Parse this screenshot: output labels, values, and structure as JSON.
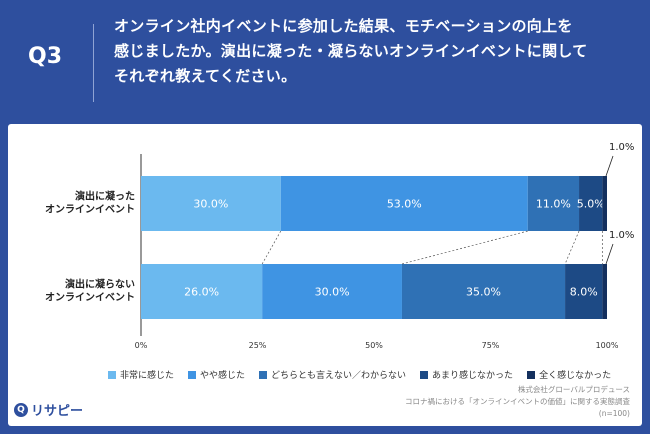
{
  "header": {
    "q_label": "Q3",
    "question_lines": [
      "オンライン社内イベントに参加した結果、モチベーションの向上を",
      "感じましたか。演出に凝った・凝らないオンラインイベントに関して",
      "それぞれ教えてください。"
    ]
  },
  "chart_data": {
    "type": "bar",
    "orientation": "horizontal",
    "stacked": true,
    "categories": [
      "演出に凝った\nオンラインイベント",
      "演出に凝らない\nオンラインイベント"
    ],
    "series": [
      {
        "name": "非常に感じた",
        "values": [
          30.0,
          26.0
        ],
        "color": "#6bb9ef"
      },
      {
        "name": "やや感じた",
        "values": [
          53.0,
          30.0
        ],
        "color": "#3f94e3"
      },
      {
        "name": "どちらとも言えない／わからない",
        "values": [
          11.0,
          35.0
        ],
        "color": "#2f71b5"
      },
      {
        "name": "あまり感じなかった",
        "values": [
          5.0,
          8.0
        ],
        "color": "#1d4a85"
      },
      {
        "name": "全く感じなかった",
        "values": [
          1.0,
          1.0
        ],
        "color": "#14305e"
      }
    ],
    "value_labels": [
      [
        "30.0%",
        "53.0%",
        "11.0%",
        "5.0%",
        "1.0%"
      ],
      [
        "26.0%",
        "30.0%",
        "35.0%",
        "8.0%",
        "1.0%"
      ]
    ],
    "x_ticks": [
      "0%",
      "25%",
      "50%",
      "75%",
      "100%"
    ],
    "xlim": [
      0,
      100
    ],
    "legend_position": "bottom"
  },
  "footer": {
    "lines": [
      "株式会社グローバルプロデュース",
      "コロナ禍における「オンラインイベントの価値」に関する実態調査",
      "(n=100)"
    ],
    "logo_text": "リサピー"
  },
  "colors": {
    "background": "#2e4f9e",
    "panel": "#ffffff"
  }
}
